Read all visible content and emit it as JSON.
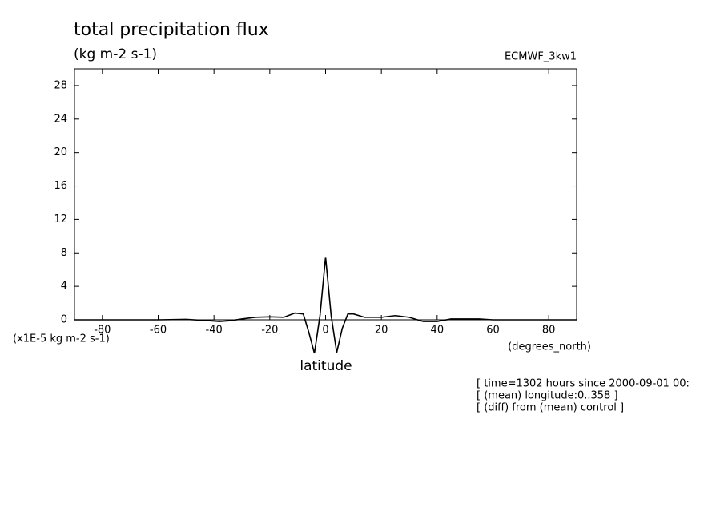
{
  "chart_data": {
    "type": "line",
    "title": "total precipitation flux",
    "subtitle": "(kg m-2 s-1)",
    "dataset": "ECMWF_3kw1",
    "y_units": "(x1E-5 kg m-2 s-1)",
    "x_units": "(degrees_north)",
    "xlabel": "latitude",
    "notes": [
      "[ time=1302 hours since 2000-09-01 00:",
      "[ (mean) longitude:0..358 ]",
      "[ (diff) from (mean) control ]"
    ],
    "x": [
      -90,
      -80,
      -70,
      -60,
      -50,
      -42,
      -38,
      -34,
      -30,
      -25,
      -20,
      -15,
      -11,
      -8,
      -6,
      -4,
      -2,
      0,
      2,
      4,
      6,
      8,
      10,
      14,
      20,
      25,
      30,
      35,
      40,
      45,
      55,
      60,
      90
    ],
    "series": [
      {
        "color": "#000000",
        "values": [
          0,
          0,
          0,
          0,
          0.05,
          -0.1,
          -0.2,
          -0.1,
          0.1,
          0.3,
          0.35,
          0.3,
          0.8,
          0.7,
          -1.5,
          -4.0,
          0.5,
          7.5,
          0.5,
          -3.9,
          -1.0,
          0.7,
          0.7,
          0.3,
          0.3,
          0.5,
          0.3,
          -0.2,
          -0.2,
          0.1,
          0.1,
          0,
          0
        ]
      }
    ],
    "xlim": [
      -90,
      90
    ],
    "xticks": [
      -80,
      -60,
      -40,
      -20,
      0,
      20,
      40,
      60,
      80
    ],
    "ylim": [
      0,
      30
    ],
    "yticks": [
      0,
      4,
      8,
      12,
      16,
      20,
      24,
      28
    ]
  }
}
